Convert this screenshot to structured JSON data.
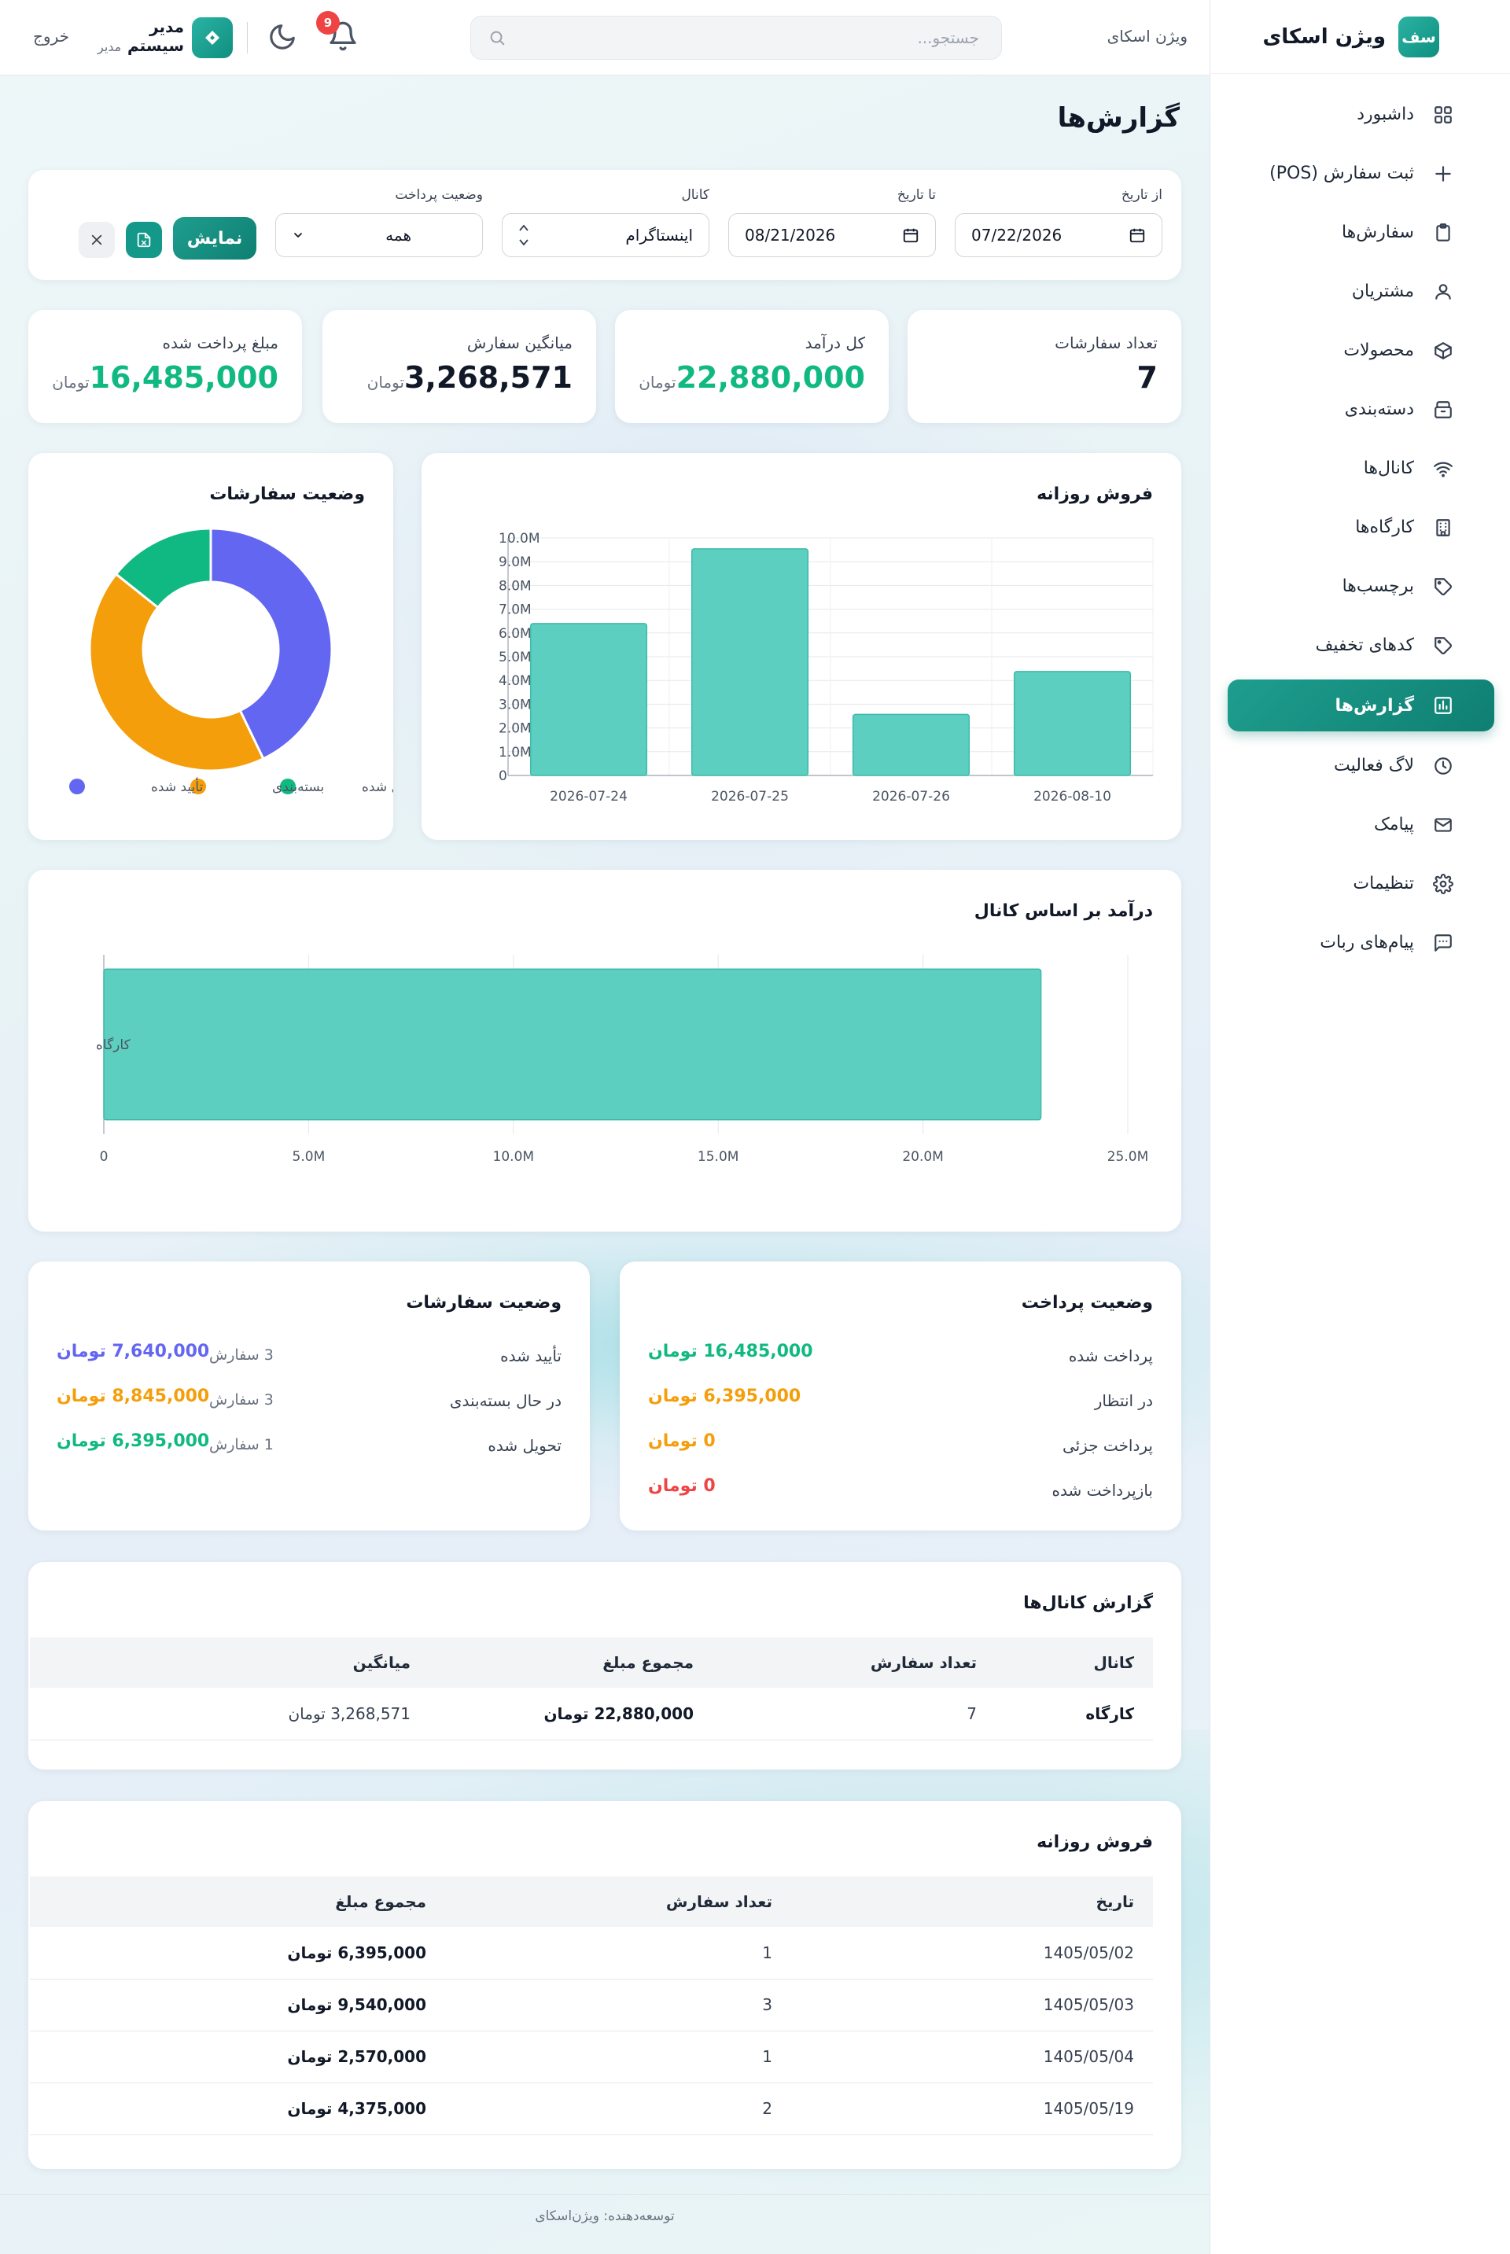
{
  "brand": {
    "logo_text": "سف",
    "name": "ویژن اسکای"
  },
  "sidebar": {
    "items": [
      {
        "label": "داشبورد",
        "icon": "grid-icon"
      },
      {
        "label": "ثبت سفارش (POS)",
        "icon": "plus-icon"
      },
      {
        "label": "سفارش‌ها",
        "icon": "clipboard-icon"
      },
      {
        "label": "مشتریان",
        "icon": "users-icon"
      },
      {
        "label": "محصولات",
        "icon": "box-icon"
      },
      {
        "label": "دسته‌بندی",
        "icon": "archive-icon"
      },
      {
        "label": "کانال‌ها",
        "icon": "wifi-icon"
      },
      {
        "label": "کارگاه‌ها",
        "icon": "building-icon"
      },
      {
        "label": "برچسب‌ها",
        "icon": "tag-icon"
      },
      {
        "label": "کدهای تخفیف",
        "icon": "tag-icon"
      },
      {
        "label": "گزارش‌ها",
        "icon": "bar-chart-icon",
        "active": true
      },
      {
        "label": "لاگ فعالیت",
        "icon": "clock-icon"
      },
      {
        "label": "پیامک",
        "icon": "mail-icon"
      },
      {
        "label": "تنظیمات",
        "icon": "gear-icon"
      },
      {
        "label": "پیام‌های ربات",
        "icon": "message-icon"
      }
    ]
  },
  "header": {
    "brand": "ویژن اسکای",
    "search_placeholder": "جستجو...",
    "notifications": "9",
    "user_name": "مدیر سیستم",
    "user_role": "مدیر",
    "logout": "خروج"
  },
  "page": {
    "title": "گزارش‌ها"
  },
  "filters": {
    "from_label": "از تاریخ",
    "from_value": "07/22/2026",
    "to_label": "تا تاریخ",
    "to_value": "08/21/2026",
    "channel_label": "کانال",
    "channel_value": "اینستاگرام",
    "payment_label": "وضعیت پرداخت",
    "payment_value": "همه",
    "show_button": "نمایش"
  },
  "stats": [
    {
      "label": "تعداد سفارشات",
      "value": "7",
      "unit": "",
      "color": "#111827"
    },
    {
      "label": "کل درآمد",
      "value": "22,880,000",
      "unit": "تومان",
      "color": "#10b981"
    },
    {
      "label": "میانگین سفارش",
      "value": "3,268,571",
      "unit": "تومان",
      "color": "#111827"
    },
    {
      "label": "مبلغ پرداخت شده",
      "value": "16,485,000",
      "unit": "تومان",
      "color": "#10b981"
    }
  ],
  "daily_chart": {
    "title": "فروش روزانه",
    "chart_data": {
      "type": "bar",
      "categories": [
        "2026-07-24",
        "2026-07-25",
        "2026-07-26",
        "2026-08-10"
      ],
      "values": [
        6395000,
        9540000,
        2570000,
        4375000
      ],
      "ylim": [
        0,
        10000000
      ],
      "yticks": [
        "0",
        "1.0M",
        "2.0M",
        "3.0M",
        "4.0M",
        "5.0M",
        "6.0M",
        "7.0M",
        "8.0M",
        "9.0M",
        "10.0M"
      ],
      "color": "#5ccfc0"
    }
  },
  "status_chart": {
    "title": "وضعیت سفارشات",
    "chart_data": {
      "type": "pie",
      "labels": [
        "تأیید شده",
        "بسته‌بندی",
        "تحویل شده"
      ],
      "values": [
        3,
        3,
        1
      ],
      "colors": [
        "#6366f1",
        "#f59e0b",
        "#10b981"
      ]
    }
  },
  "channel_chart": {
    "title": "درآمد بر اساس کانال",
    "chart_data": {
      "type": "bar",
      "orientation": "horizontal",
      "categories": [
        "کارگاه"
      ],
      "values": [
        22880000
      ],
      "xlim": [
        0,
        25000000
      ],
      "xticks": [
        "0",
        "5.0M",
        "10.0M",
        "15.0M",
        "20.0M",
        "25.0M"
      ],
      "color": "#5ccfc0"
    }
  },
  "payment_status": {
    "title": "وضعیت پرداخت",
    "rows": [
      {
        "label": "پرداخت شده",
        "amount": "16,485,000 تومان",
        "color": "#10b981"
      },
      {
        "label": "در انتظار",
        "amount": "6,395,000 تومان",
        "color": "#f59e0b"
      },
      {
        "label": "پرداخت جزئی",
        "amount": "0 تومان",
        "color": "#f59e0b"
      },
      {
        "label": "بازپرداخت شده",
        "amount": "0 تومان",
        "color": "#ef4444"
      }
    ]
  },
  "order_status": {
    "title": "وضعیت سفارشات",
    "rows": [
      {
        "label": "تأیید شده",
        "count": "3 سفارش",
        "amount": "7,640,000 تومان",
        "color": "#6366f1"
      },
      {
        "label": "در حال بسته‌بندی",
        "count": "3 سفارش",
        "amount": "8,845,000 تومان",
        "color": "#f59e0b"
      },
      {
        "label": "تحویل شده",
        "count": "1 سفارش",
        "amount": "6,395,000 تومان",
        "color": "#10b981"
      }
    ]
  },
  "channel_report": {
    "title": "گزارش کانال‌ها",
    "headers": [
      "کانال",
      "تعداد سفارش",
      "مجموع مبلغ",
      "میانگین"
    ],
    "rows": [
      [
        "کارگاه",
        "7",
        "22,880,000 تومان",
        "3,268,571 تومان"
      ]
    ]
  },
  "daily_report": {
    "title": "فروش روزانه",
    "headers": [
      "تاریخ",
      "تعداد سفارش",
      "مجموع مبلغ"
    ],
    "rows": [
      [
        "1405/05/02",
        "1",
        "6,395,000 تومان"
      ],
      [
        "1405/05/03",
        "3",
        "9,540,000 تومان"
      ],
      [
        "1405/05/04",
        "1",
        "2,570,000 تومان"
      ],
      [
        "1405/05/19",
        "2",
        "4,375,000 تومان"
      ]
    ]
  },
  "footer": {
    "text": "توسعه‌دهنده: ویژن‌اسکای"
  }
}
